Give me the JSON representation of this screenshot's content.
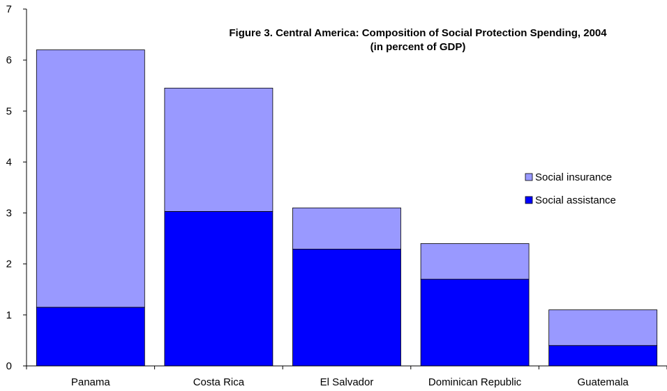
{
  "chart_data": {
    "type": "bar",
    "stacked": true,
    "title": "Figure 3. Central America: Composition of Social Protection Spending, 2004",
    "subtitle": "(in percent of GDP)",
    "categories": [
      "Panama",
      "Costa Rica",
      "El Salvador",
      "Dominican Republic",
      "Guatemala"
    ],
    "series": [
      {
        "name": "Social assistance",
        "values": [
          1.15,
          3.03,
          2.29,
          1.7,
          0.4
        ],
        "color": "#0000ff"
      },
      {
        "name": "Social insurance",
        "values": [
          5.05,
          2.42,
          0.81,
          0.7,
          0.7
        ],
        "color": "#9999ff"
      }
    ],
    "totals": [
      6.2,
      5.45,
      3.1,
      2.4,
      1.1
    ],
    "ylim": [
      0,
      7
    ],
    "yticks": [
      "0",
      "1",
      "2",
      "3",
      "4",
      "5",
      "6",
      "7"
    ],
    "xlabel": "",
    "ylabel": "",
    "grid": false,
    "legend_position": "right"
  }
}
